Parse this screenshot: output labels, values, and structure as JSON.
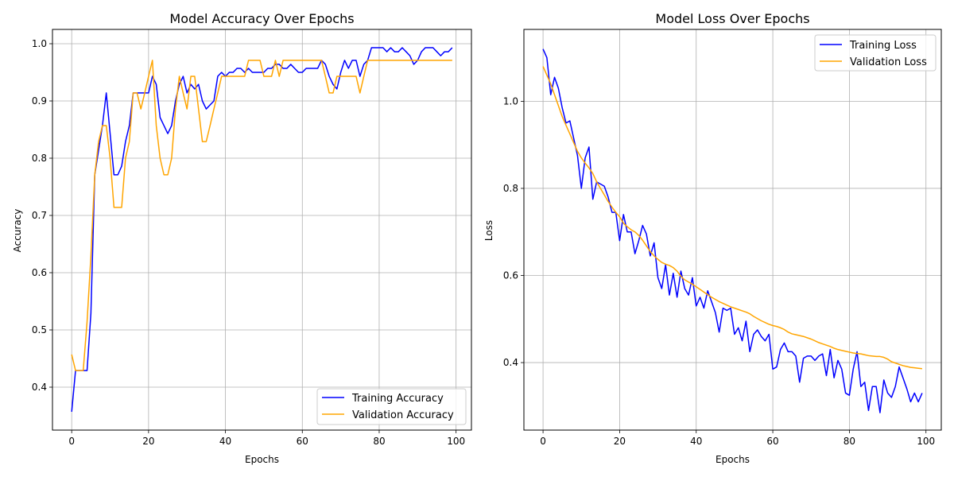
{
  "colors": {
    "training": "#0000ff",
    "validation": "#ffa500",
    "grid": "#b0b0b0",
    "axis": "#000000"
  },
  "chart_data": [
    {
      "type": "line",
      "title": "Model Accuracy Over Epochs",
      "xlabel": "Epochs",
      "ylabel": "Accuracy",
      "xlim": [
        -5,
        104
      ],
      "ylim": [
        0.325,
        1.025
      ],
      "xticks": [
        0,
        20,
        40,
        60,
        80,
        100
      ],
      "yticks": [
        0.4,
        0.5,
        0.6,
        0.7,
        0.8,
        0.9,
        1.0
      ],
      "xtick_labels": [
        "0",
        "20",
        "40",
        "60",
        "80",
        "100"
      ],
      "ytick_labels": [
        "0.4",
        "0.5",
        "0.6",
        "0.7",
        "0.8",
        "0.9",
        "1.0"
      ],
      "grid": true,
      "legend_position": "lower-right",
      "series": [
        {
          "name": "Training Accuracy",
          "color": "#0000ff",
          "values": [
            0.357,
            0.429,
            0.429,
            0.429,
            0.429,
            0.529,
            0.771,
            0.814,
            0.857,
            0.914,
            0.843,
            0.771,
            0.771,
            0.786,
            0.829,
            0.857,
            0.914,
            0.914,
            0.914,
            0.914,
            0.914,
            0.943,
            0.929,
            0.871,
            0.857,
            0.843,
            0.857,
            0.9,
            0.929,
            0.943,
            0.914,
            0.929,
            0.921,
            0.929,
            0.9,
            0.886,
            0.893,
            0.9,
            0.943,
            0.95,
            0.943,
            0.95,
            0.95,
            0.957,
            0.957,
            0.95,
            0.957,
            0.95,
            0.95,
            0.95,
            0.95,
            0.957,
            0.957,
            0.964,
            0.964,
            0.957,
            0.957,
            0.964,
            0.957,
            0.95,
            0.95,
            0.957,
            0.957,
            0.957,
            0.957,
            0.971,
            0.964,
            0.943,
            0.929,
            0.921,
            0.95,
            0.971,
            0.957,
            0.971,
            0.971,
            0.943,
            0.964,
            0.971,
            0.993,
            0.993,
            0.993,
            0.993,
            0.986,
            0.993,
            0.986,
            0.986,
            0.993,
            0.986,
            0.979,
            0.964,
            0.971,
            0.986,
            0.993,
            0.993,
            0.993,
            0.986,
            0.979,
            0.986,
            0.986,
            0.993
          ]
        },
        {
          "name": "Validation Accuracy",
          "color": "#ffa500",
          "values": [
            0.457,
            0.429,
            0.429,
            0.429,
            0.514,
            0.629,
            0.771,
            0.829,
            0.857,
            0.857,
            0.8,
            0.714,
            0.714,
            0.714,
            0.8,
            0.829,
            0.914,
            0.914,
            0.886,
            0.914,
            0.943,
            0.971,
            0.857,
            0.8,
            0.771,
            0.771,
            0.8,
            0.886,
            0.943,
            0.914,
            0.886,
            0.943,
            0.943,
            0.886,
            0.829,
            0.829,
            0.857,
            0.886,
            0.914,
            0.943,
            0.943,
            0.943,
            0.943,
            0.943,
            0.943,
            0.943,
            0.971,
            0.971,
            0.971,
            0.971,
            0.943,
            0.943,
            0.943,
            0.971,
            0.943,
            0.971,
            0.971,
            0.971,
            0.971,
            0.971,
            0.971,
            0.971,
            0.971,
            0.971,
            0.971,
            0.971,
            0.943,
            0.914,
            0.914,
            0.943,
            0.943,
            0.943,
            0.943,
            0.943,
            0.943,
            0.914,
            0.943,
            0.971,
            0.971,
            0.971,
            0.971,
            0.971,
            0.971,
            0.971,
            0.971,
            0.971,
            0.971,
            0.971,
            0.971,
            0.971,
            0.971,
            0.971,
            0.971,
            0.971,
            0.971,
            0.971,
            0.971,
            0.971,
            0.971,
            0.971
          ]
        }
      ]
    },
    {
      "type": "line",
      "title": "Model Loss Over Epochs",
      "xlabel": "Epochs",
      "ylabel": "Loss",
      "xlim": [
        -5,
        104
      ],
      "ylim": [
        0.245,
        1.165
      ],
      "xticks": [
        0,
        20,
        40,
        60,
        80,
        100
      ],
      "yticks": [
        0.4,
        0.6,
        0.8,
        1.0
      ],
      "xtick_labels": [
        "0",
        "20",
        "40",
        "60",
        "80",
        "100"
      ],
      "ytick_labels": [
        "0.4",
        "0.6",
        "0.8",
        "1.0"
      ],
      "grid": true,
      "legend_position": "upper-right",
      "series": [
        {
          "name": "Training Loss",
          "color": "#0000ff",
          "values": [
            1.12,
            1.1,
            1.015,
            1.055,
            1.03,
            0.985,
            0.95,
            0.955,
            0.915,
            0.875,
            0.8,
            0.87,
            0.895,
            0.775,
            0.815,
            0.81,
            0.805,
            0.78,
            0.745,
            0.745,
            0.68,
            0.74,
            0.7,
            0.7,
            0.65,
            0.68,
            0.715,
            0.695,
            0.645,
            0.675,
            0.595,
            0.57,
            0.625,
            0.555,
            0.605,
            0.55,
            0.61,
            0.57,
            0.555,
            0.595,
            0.53,
            0.55,
            0.525,
            0.565,
            0.54,
            0.515,
            0.47,
            0.525,
            0.52,
            0.525,
            0.465,
            0.48,
            0.45,
            0.495,
            0.425,
            0.465,
            0.475,
            0.46,
            0.45,
            0.465,
            0.385,
            0.39,
            0.43,
            0.445,
            0.425,
            0.425,
            0.415,
            0.355,
            0.41,
            0.415,
            0.415,
            0.405,
            0.415,
            0.42,
            0.37,
            0.43,
            0.365,
            0.405,
            0.385,
            0.33,
            0.325,
            0.385,
            0.425,
            0.345,
            0.355,
            0.29,
            0.345,
            0.345,
            0.285,
            0.36,
            0.33,
            0.32,
            0.345,
            0.39,
            0.365,
            0.34,
            0.31,
            0.33,
            0.31,
            0.33
          ]
        },
        {
          "name": "Validation Loss",
          "color": "#ffa500",
          "values": [
            1.08,
            1.06,
            1.04,
            1.015,
            0.99,
            0.965,
            0.945,
            0.925,
            0.905,
            0.885,
            0.87,
            0.858,
            0.847,
            0.834,
            0.815,
            0.8,
            0.785,
            0.77,
            0.757,
            0.745,
            0.735,
            0.72,
            0.712,
            0.705,
            0.7,
            0.692,
            0.681,
            0.668,
            0.655,
            0.645,
            0.637,
            0.63,
            0.626,
            0.623,
            0.618,
            0.61,
            0.598,
            0.59,
            0.585,
            0.58,
            0.574,
            0.568,
            0.562,
            0.556,
            0.55,
            0.545,
            0.54,
            0.536,
            0.532,
            0.528,
            0.525,
            0.522,
            0.519,
            0.516,
            0.512,
            0.506,
            0.501,
            0.496,
            0.492,
            0.488,
            0.485,
            0.483,
            0.48,
            0.476,
            0.47,
            0.466,
            0.464,
            0.462,
            0.46,
            0.457,
            0.454,
            0.45,
            0.446,
            0.443,
            0.44,
            0.437,
            0.433,
            0.43,
            0.428,
            0.426,
            0.424,
            0.422,
            0.421,
            0.42,
            0.418,
            0.416,
            0.415,
            0.414,
            0.414,
            0.412,
            0.408,
            0.402,
            0.399,
            0.396,
            0.393,
            0.391,
            0.389,
            0.388,
            0.387,
            0.386
          ]
        }
      ]
    }
  ]
}
